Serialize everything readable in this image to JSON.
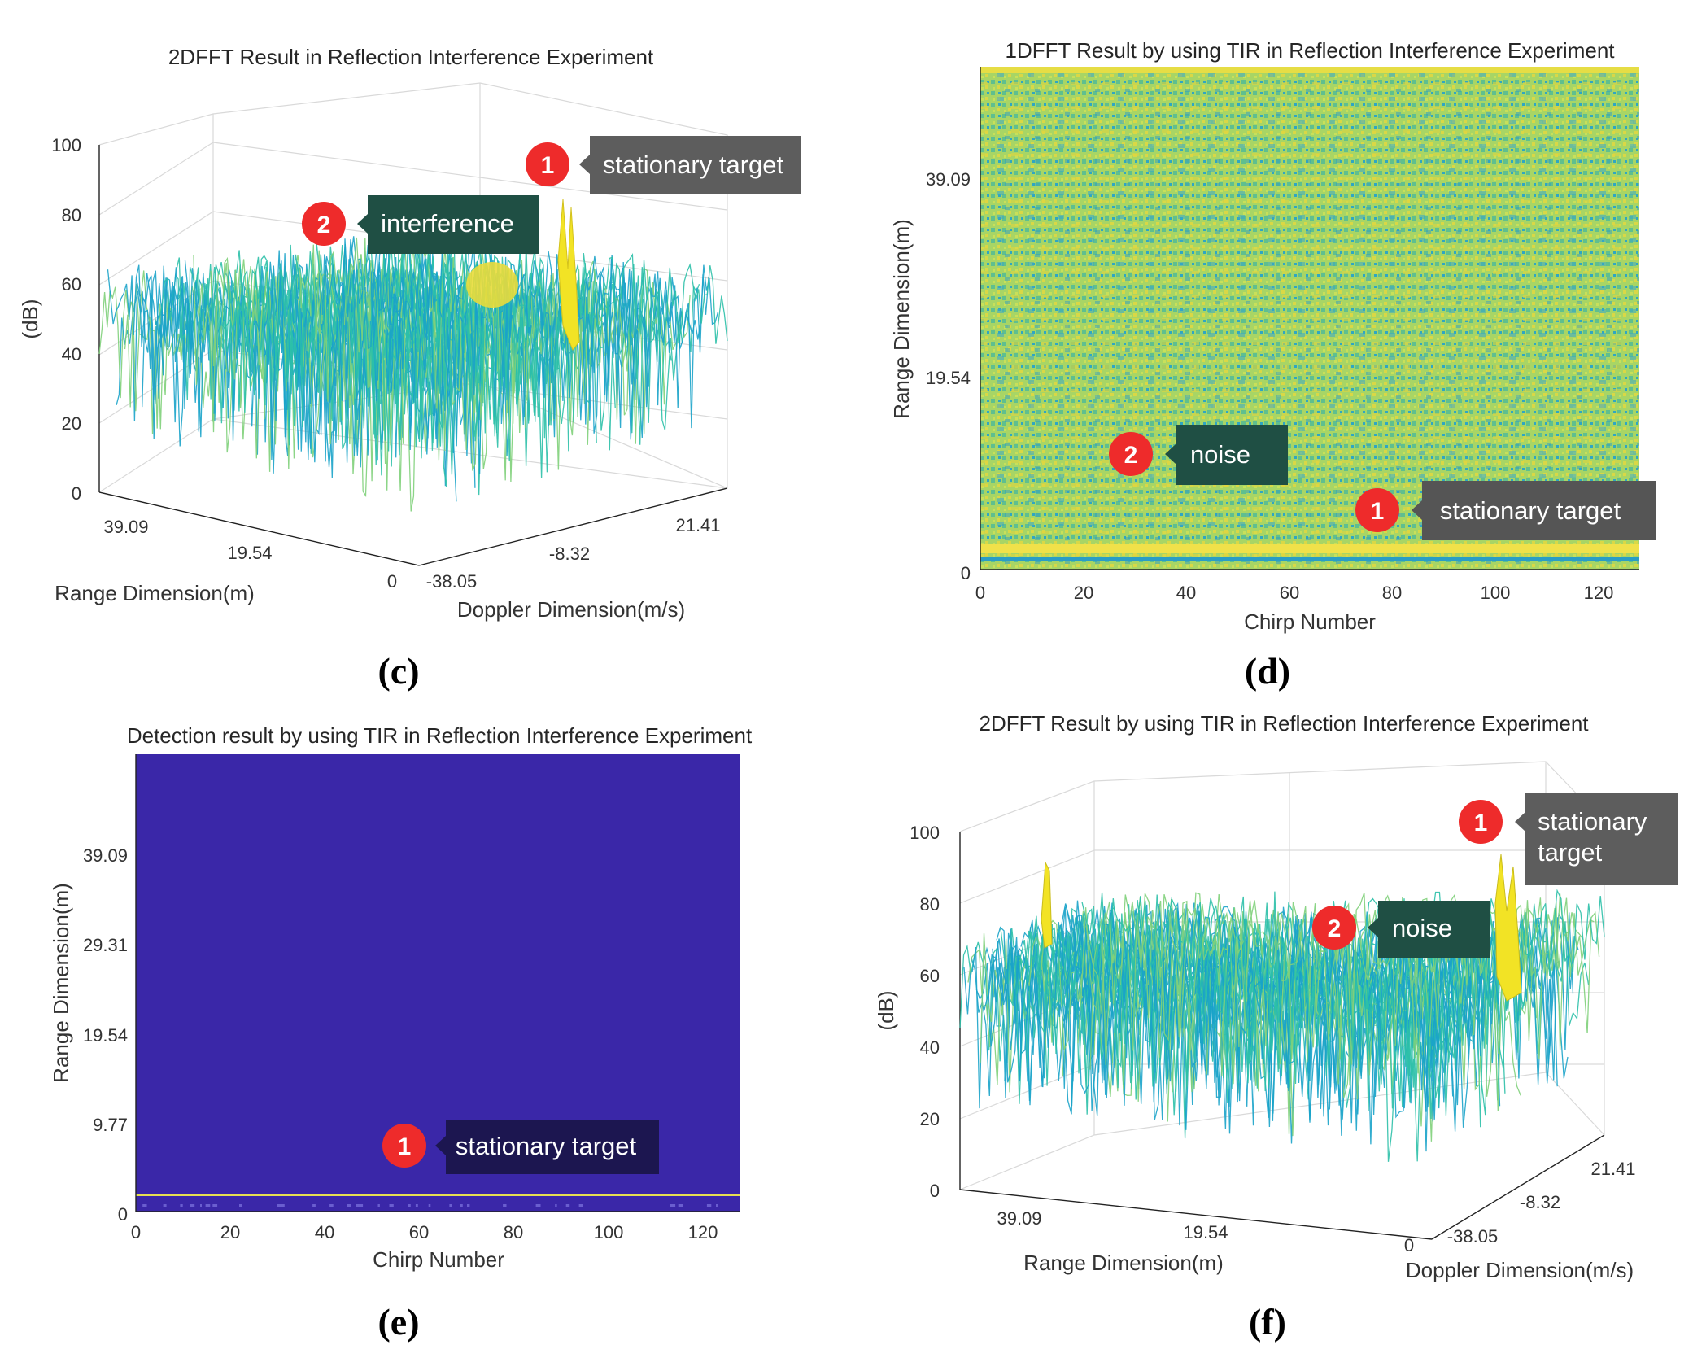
{
  "chart_data": [
    {
      "id": "c",
      "type": "surface",
      "panel_label": "(c)",
      "title": "2DFFT Result in Reflection Interference Experiment",
      "zlabel": "(dB)",
      "xlabel": "Range Dimension(m)",
      "ylabel": "Doppler Dimension(m/s)",
      "z_ticks": [
        "0",
        "20",
        "40",
        "60",
        "80",
        "100"
      ],
      "zlim": [
        0,
        100
      ],
      "x_ticks": [
        "0",
        "19.54",
        "39.09"
      ],
      "y_ticks": [
        "-38.05",
        "-8.32",
        "21.41"
      ],
      "noise_floor_db": [
        40,
        65
      ],
      "peaks": [
        {
          "name": "stationary target",
          "value_db": 85
        },
        {
          "name": "interference",
          "value_db": 65
        }
      ],
      "annotations": [
        {
          "num": "1",
          "text": "stationary target"
        },
        {
          "num": "2",
          "text": "interference"
        }
      ]
    },
    {
      "id": "d",
      "type": "heatmap",
      "panel_label": "(d)",
      "title": "1DFFT Result by using TIR in Reflection Interference Experiment",
      "xlabel": "Chirp Number",
      "ylabel": "Range Dimension(m)",
      "x_ticks": [
        "0",
        "20",
        "40",
        "60",
        "80",
        "100",
        "120"
      ],
      "xlim": [
        0,
        128
      ],
      "y_ticks": [
        "0",
        "19.54",
        "39.09"
      ],
      "ylim": [
        0,
        48.86
      ],
      "annotations": [
        {
          "num": "2",
          "text": "noise"
        },
        {
          "num": "1",
          "text": "stationary target"
        }
      ]
    },
    {
      "id": "e",
      "type": "heatmap",
      "panel_label": "(e)",
      "title": "Detection result by using TIR in Reflection Interference Experiment",
      "xlabel": "Chirp Number",
      "ylabel": "Range Dimension(m)",
      "x_ticks": [
        "0",
        "20",
        "40",
        "60",
        "80",
        "100",
        "120"
      ],
      "xlim": [
        0,
        128
      ],
      "y_ticks": [
        "0",
        "9.77",
        "19.54",
        "29.31",
        "39.09"
      ],
      "ylim": [
        0,
        48.86
      ],
      "detection_range_m": 1.5,
      "annotations": [
        {
          "num": "1",
          "text": "stationary target"
        }
      ]
    },
    {
      "id": "f",
      "type": "surface",
      "panel_label": "(f)",
      "title": "2DFFT Result by using TIR in Reflection Interference Experiment",
      "zlabel": "(dB)",
      "xlabel": "Range Dimension(m)",
      "ylabel": "Doppler Dimension(m/s)",
      "z_ticks": [
        "0",
        "20",
        "40",
        "60",
        "80",
        "100"
      ],
      "zlim": [
        0,
        100
      ],
      "x_ticks": [
        "39.09",
        "19.54",
        "0"
      ],
      "y_ticks": [
        "-38.05",
        "-8.32",
        "21.41"
      ],
      "noise_floor_db": [
        40,
        65
      ],
      "peaks": [
        {
          "name": "stationary target",
          "value_db": 90
        },
        {
          "name": "noise",
          "value_db": 88
        }
      ],
      "annotations": [
        {
          "num": "1",
          "text": "stationary\ntarget"
        },
        {
          "num": "2",
          "text": "noise"
        }
      ]
    }
  ],
  "colors": {
    "surface_base": "#1aa3c9",
    "surface_mid": "#2cc0a8",
    "peak": "#f2e325",
    "heatmap_bg": "#9cd26a",
    "detection_bg": "#3a27a8",
    "badge": "#ee2b2b",
    "callout_dark": "#5d5d5d",
    "callout_teal": "#1f4f44",
    "callout_navy": "#1c1650"
  }
}
